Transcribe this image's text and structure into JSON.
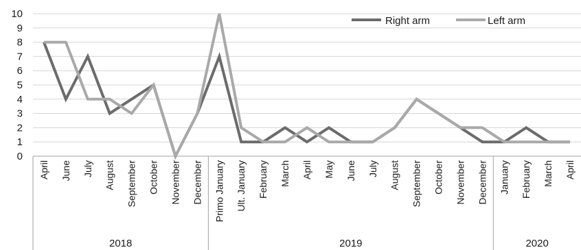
{
  "chart_data": {
    "type": "line",
    "title": "",
    "xlabel": "",
    "ylabel": "",
    "ylim": [
      0,
      10
    ],
    "y_ticks": [
      "0",
      "1",
      "2",
      "3",
      "4",
      "5",
      "6",
      "7",
      "8",
      "9",
      "10"
    ],
    "grid": true,
    "legend_position": "top-right",
    "categories": [
      "April",
      "June",
      "July",
      "August",
      "September",
      "October",
      "November",
      "December",
      "Primo January",
      "Ult. January",
      "February",
      "March",
      "April",
      "May",
      "June",
      "July",
      "August",
      "September",
      "October",
      "November",
      "December",
      "January",
      "February",
      "March",
      "April"
    ],
    "groups": [
      {
        "label": "2018",
        "count": 8
      },
      {
        "label": "2019",
        "count": 13
      },
      {
        "label": "2020",
        "count": 4
      }
    ],
    "series": [
      {
        "name": "Right arm",
        "color": "#6b6b6b",
        "values": [
          8,
          4,
          7,
          3,
          4,
          5,
          0,
          3,
          7,
          1,
          1,
          2,
          1,
          2,
          1,
          1,
          2,
          4,
          3,
          2,
          1,
          1,
          2,
          1,
          1
        ]
      },
      {
        "name": "Left arm",
        "color": "#a9a9a9",
        "values": [
          8,
          8,
          4,
          4,
          3,
          5,
          0,
          3,
          10,
          2,
          1,
          1,
          2,
          1,
          1,
          1,
          2,
          4,
          3,
          2,
          2,
          1,
          1,
          1,
          1
        ]
      }
    ]
  }
}
